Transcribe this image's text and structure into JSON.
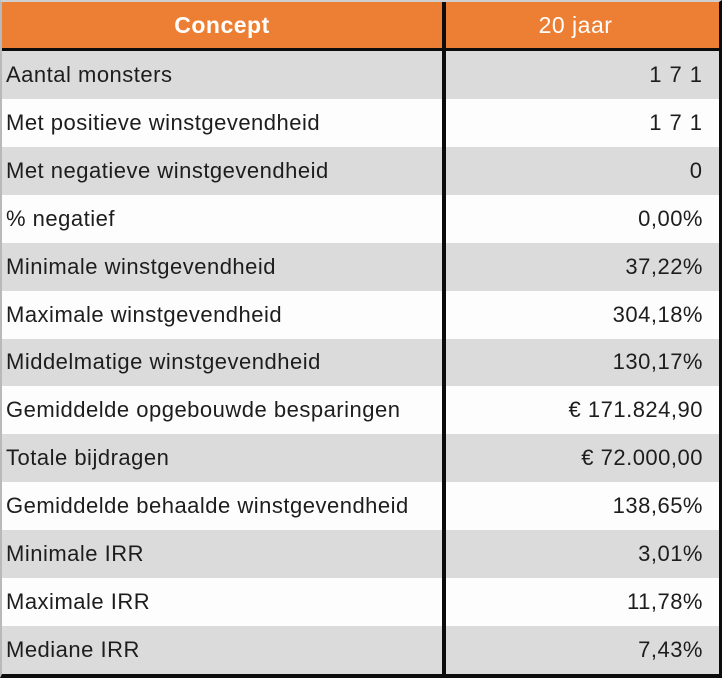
{
  "chart_data": {
    "type": "table",
    "columns": [
      "Concept",
      "20 jaar"
    ],
    "rows": [
      {
        "label": "Aantal monsters",
        "value": "171"
      },
      {
        "label": "Met positieve winstgevendheid",
        "value": "171"
      },
      {
        "label": "Met negatieve winstgevendheid",
        "value": "0"
      },
      {
        "label": "% negatief",
        "value": "0,00%"
      },
      {
        "label": "Minimale winstgevendheid",
        "value": "37,22%"
      },
      {
        "label": "Maximale winstgevendheid",
        "value": "304,18%"
      },
      {
        "label": "Middelmatige winstgevendheid",
        "value": "130,17%"
      },
      {
        "label": "Gemiddelde opgebouwde besparingen",
        "value": "€ 171.824,90"
      },
      {
        "label": "Totale bijdragen",
        "value": "€ 72.000,00"
      },
      {
        "label": "Gemiddelde behaalde winstgevendheid",
        "value": "138,65%"
      },
      {
        "label": "Minimale IRR",
        "value": "3,01%"
      },
      {
        "label": "Maximale IRR",
        "value": "11,78%"
      },
      {
        "label": "Mediane IRR",
        "value": "7,43%"
      }
    ]
  },
  "colors": {
    "header_bg": "#EC7F33",
    "header_text": "#FFFFFF",
    "row_alt_bg": "#DBDBDB",
    "row_plain_bg": "#FDFDFD",
    "border": "#0C0C0C",
    "text": "#1D1D1D"
  }
}
